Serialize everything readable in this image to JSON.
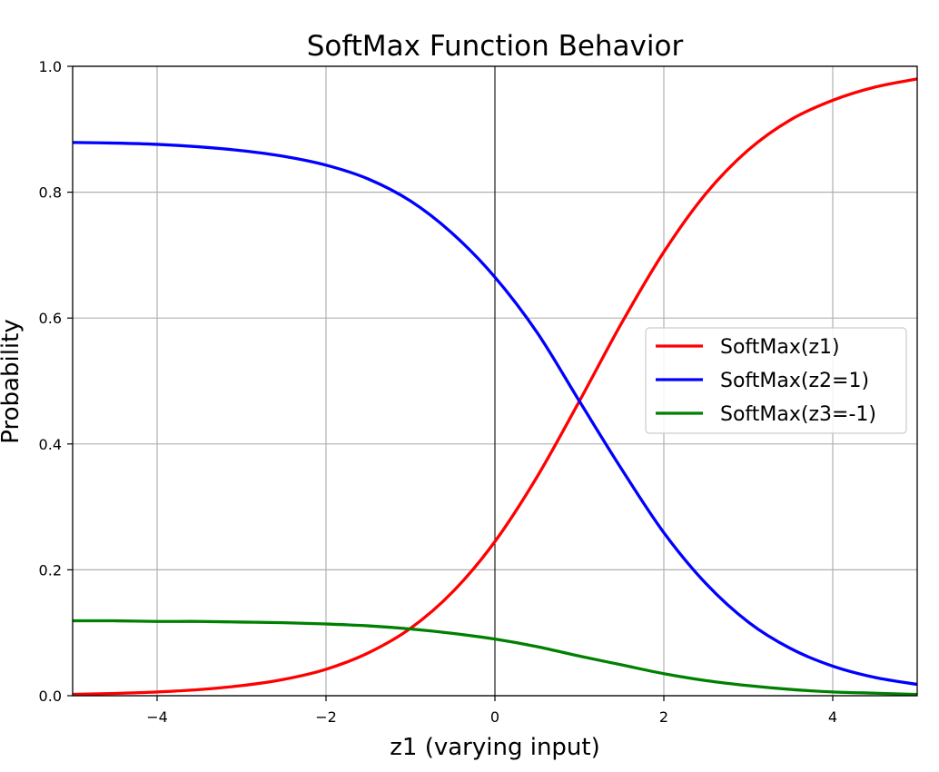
{
  "chart_data": {
    "type": "line",
    "title": "SoftMax Function Behavior",
    "xlabel": "z1 (varying input)",
    "ylabel": "Probability",
    "xlim": [
      -5,
      5
    ],
    "ylim": [
      0,
      1
    ],
    "grid": true,
    "legend_position": "center-right",
    "xticks": [
      -4,
      -2,
      0,
      2,
      4
    ],
    "xtick_labels": [
      "−4",
      "−2",
      "0",
      "2",
      "4"
    ],
    "yticks": [
      0.0,
      0.2,
      0.4,
      0.6,
      0.8,
      1.0
    ],
    "ytick_labels": [
      "0.0",
      "0.2",
      "0.4",
      "0.6",
      "0.8",
      "1.0"
    ],
    "x": [
      -5,
      -4.5,
      -4,
      -3.5,
      -3,
      -2.5,
      -2,
      -1.5,
      -1,
      -0.5,
      0,
      0.5,
      1,
      1.5,
      2,
      2.5,
      3,
      3.5,
      4,
      4.5,
      5
    ],
    "series": [
      {
        "name": "SoftMax(z1)",
        "color": "#ff0000",
        "values": [
          0.0022,
          0.0036,
          0.0059,
          0.0097,
          0.016,
          0.026,
          0.042,
          0.068,
          0.107,
          0.165,
          0.245,
          0.348,
          0.468,
          0.592,
          0.705,
          0.798,
          0.867,
          0.915,
          0.946,
          0.967,
          0.98
        ]
      },
      {
        "name": "SoftMax(z2=1)",
        "color": "#0000ff",
        "values": [
          0.879,
          0.878,
          0.876,
          0.872,
          0.866,
          0.857,
          0.843,
          0.821,
          0.786,
          0.734,
          0.665,
          0.577,
          0.468,
          0.36,
          0.259,
          0.178,
          0.117,
          0.075,
          0.047,
          0.029,
          0.018
        ]
      },
      {
        "name": "SoftMax(z3=-1)",
        "color": "#008000",
        "values": [
          0.119,
          0.119,
          0.118,
          0.118,
          0.117,
          0.116,
          0.114,
          0.111,
          0.106,
          0.099,
          0.09,
          0.078,
          0.063,
          0.049,
          0.035,
          0.024,
          0.016,
          0.01,
          0.006,
          0.004,
          0.002
        ]
      }
    ]
  }
}
